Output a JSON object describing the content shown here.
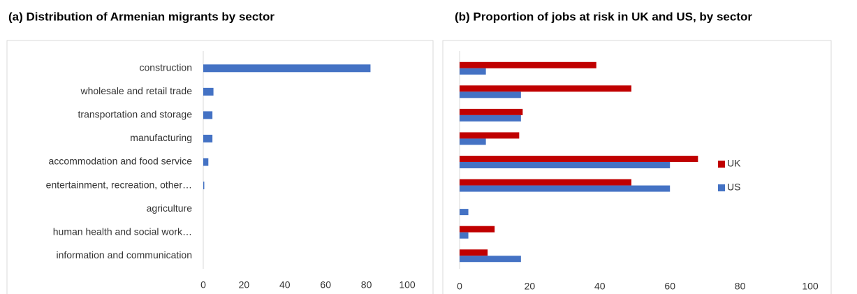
{
  "chart_data": [
    {
      "type": "bar",
      "orientation": "horizontal",
      "title": "(a)   Distribution of Armenian migrants by sector",
      "categories": [
        "construction",
        "wholesale and retail trade",
        "transportation and storage",
        "manufacturing",
        "accommodation and food service",
        "entertainment, recreation, other…",
        "agriculture",
        "human health and social work…",
        "information and communication"
      ],
      "series": [
        {
          "name": null,
          "color": "#4472c4",
          "values": [
            82,
            5,
            4.5,
            4.5,
            2.5,
            0.5,
            0,
            0,
            0
          ]
        }
      ],
      "xlim": [
        0,
        100
      ],
      "xticks": [
        0,
        20,
        40,
        60,
        80,
        100
      ],
      "legend": false
    },
    {
      "type": "bar",
      "orientation": "horizontal",
      "title": "(b) Proportion of jobs at risk in UK and US, by sector",
      "series": [
        {
          "name": "UK",
          "color": "#c00000",
          "values": [
            39,
            49,
            18,
            17,
            68,
            49,
            0,
            10,
            8
          ]
        },
        {
          "name": "US",
          "color": "#4472c4",
          "values": [
            7.5,
            17.5,
            17.5,
            7.5,
            60,
            60,
            2.5,
            2.5,
            17.5
          ]
        }
      ],
      "xlim": [
        0,
        100
      ],
      "xticks": [
        0,
        20,
        40,
        60,
        80,
        100
      ],
      "legend": "right"
    }
  ]
}
